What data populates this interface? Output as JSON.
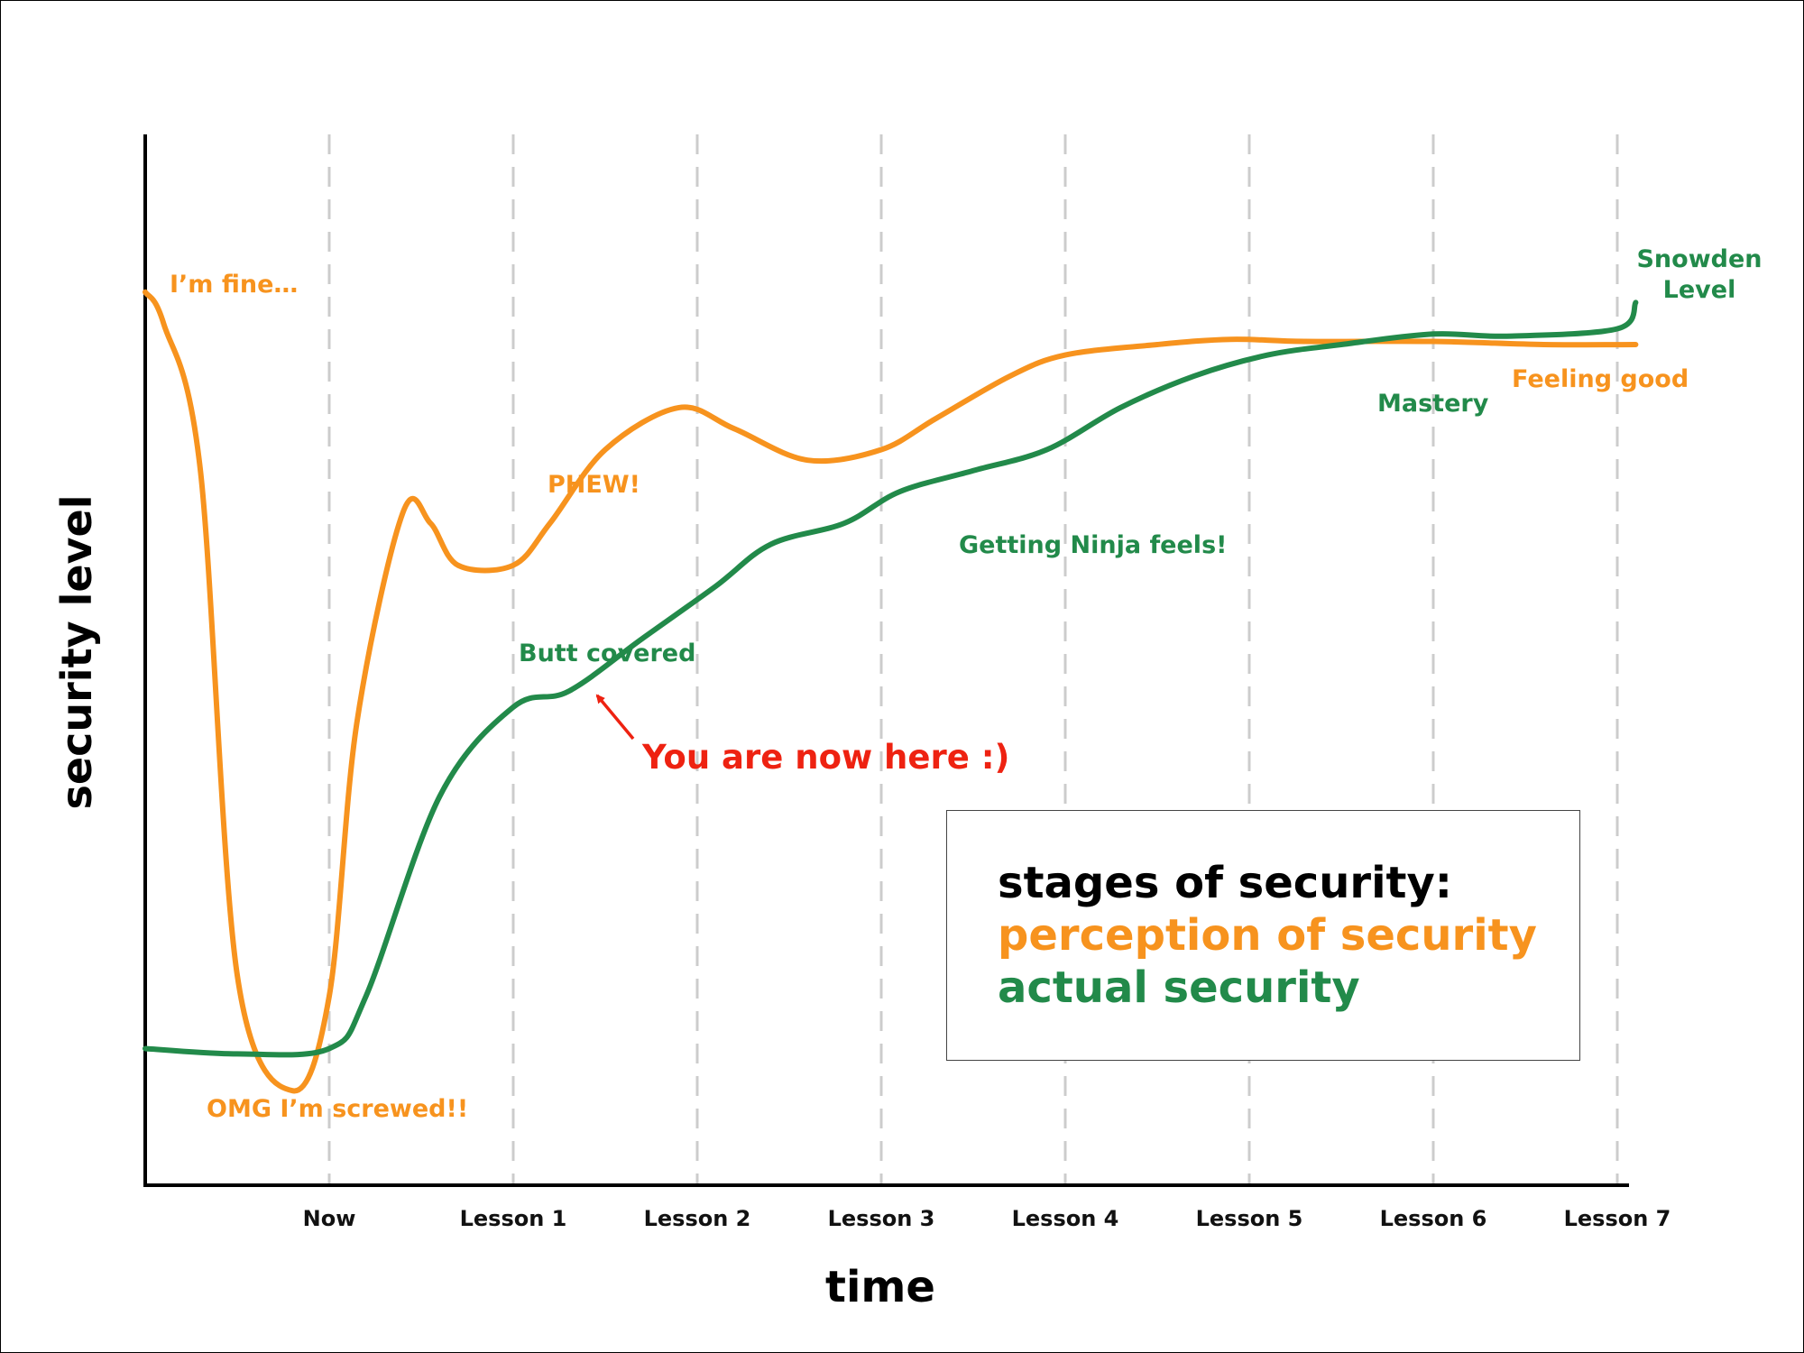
{
  "colors": {
    "perception": "#f7931e",
    "actual": "#228a4a",
    "pointer": "#ee2211",
    "axis": "#000000",
    "grid": "#cccccc"
  },
  "chart_data": {
    "type": "line",
    "xlabel": "time",
    "ylabel": "security level",
    "categories": [
      "Now",
      "Lesson 1",
      "Lesson 2",
      "Lesson 3",
      "Lesson 4",
      "Lesson 5",
      "Lesson 6",
      "Lesson 7"
    ],
    "xlim": [
      0,
      8.1
    ],
    "ylim": [
      0,
      100
    ],
    "grid": "vertical dashed lines at each category",
    "series": [
      {
        "name": "perception of security",
        "color": "#f7931e",
        "x": [
          0,
          0.1,
          0.3,
          0.5,
          0.8,
          1.0,
          1.15,
          1.4,
          1.55,
          1.7,
          2.0,
          2.2,
          2.5,
          2.9,
          3.2,
          3.6,
          4.0,
          4.3,
          4.7,
          5.0,
          5.5,
          5.9,
          6.3,
          7.0,
          7.6,
          8.1
        ],
        "y": [
          85,
          82,
          68,
          20,
          9,
          18,
          44,
          64,
          63,
          59,
          59,
          63,
          70,
          74,
          72,
          69,
          70,
          73,
          77,
          79,
          80,
          80.5,
          80.3,
          80.3,
          80,
          80
        ]
      },
      {
        "name": "actual security",
        "color": "#228a4a",
        "x": [
          0,
          0.5,
          1.0,
          1.2,
          1.6,
          2.0,
          2.3,
          2.7,
          3.1,
          3.4,
          3.8,
          4.1,
          4.5,
          4.9,
          5.3,
          5.7,
          6.1,
          6.5,
          7.0,
          7.4,
          8.0,
          8.1
        ],
        "y": [
          13,
          12.5,
          13,
          18,
          37,
          45.5,
          47,
          52,
          57,
          61,
          63,
          66,
          68,
          70,
          74,
          77,
          79,
          80,
          81,
          80.8,
          81.5,
          84
        ]
      }
    ],
    "annotations": {
      "im_fine": "I’m fine…",
      "omg": "OMG I’m screwed!!",
      "phew": "PHEW!",
      "feeling_good": "Feeling good",
      "butt_covered": "Butt covered",
      "ninja": "Getting Ninja feels!",
      "mastery": "Mastery",
      "snowden_1": "Snowden",
      "snowden_2": "Level",
      "you_are_here": "You are now here :)"
    },
    "legend": {
      "placement": "bottom-right",
      "title": "stages of security:",
      "entries": [
        "perception of security",
        "actual security"
      ]
    }
  }
}
